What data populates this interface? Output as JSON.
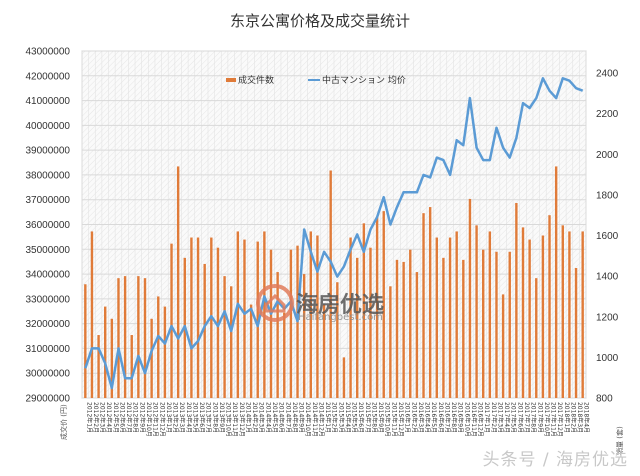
{
  "title": "东京公寓价格及成交量统计",
  "watermark": "头条号 / 海房优选",
  "logo": {
    "name": "海房优选",
    "url": "Haifangbest.com"
  },
  "colors": {
    "bar": "#e07b39",
    "line": "#5b9bd5",
    "grid": "#d9d9d9",
    "text": "#333333"
  },
  "chart_data": {
    "type": "bar+line",
    "title": "东京公寓价格及成交量统计",
    "legend": [
      "成交件数",
      "中古マンション 均价"
    ],
    "legend_position": "top",
    "y_left": {
      "label": "成交价 (円)",
      "min": 29000000,
      "max": 43000000,
      "step": 1000000,
      "ticks": [
        "29000000",
        "30000000",
        "31000000",
        "32000000",
        "33000000",
        "34000000",
        "35000000",
        "36000000",
        "37000000",
        "38000000",
        "39000000",
        "40000000",
        "41000000",
        "42000000",
        "43000000"
      ]
    },
    "y_right": {
      "label": "销量 (套)",
      "min": 800,
      "max": 2400,
      "step": 200,
      "ticks": [
        "800",
        "1000",
        "1200",
        "1400",
        "1600",
        "1800",
        "2000",
        "2200",
        "2400"
      ]
    },
    "categories": [
      "2012年1月",
      "2012年2月",
      "2012年3月",
      "2012年4月",
      "2012年5月",
      "2012年6月",
      "2012年7月",
      "2012年8月",
      "2012年9月",
      "2012年10月",
      "2012年11月",
      "2012年12月",
      "2013年1月",
      "2013年2月",
      "2013年3月",
      "2013年4月",
      "2013年5月",
      "2013年6月",
      "2013年7月",
      "2013年8月",
      "2013年9月",
      "2013年10月",
      "2013年11月",
      "2013年12月",
      "2014年1月",
      "2014年2月",
      "2014年3月",
      "2014年4月",
      "2014年5月",
      "2014年6月",
      "2014年7月",
      "2014年8月",
      "2014年9月",
      "2014年10月",
      "2014年11月",
      "2014年12月",
      "2015年1月",
      "2015年2月",
      "2015年3月",
      "2015年4月",
      "2015年5月",
      "2015年6月",
      "2015年7月",
      "2015年8月",
      "2015年9月",
      "2015年10月",
      "2015年11月",
      "2015年12月",
      "2016年1月",
      "2016年2月",
      "2016年3月",
      "2016年4月",
      "2016年5月",
      "2016年6月",
      "2016年7月",
      "2016年8月",
      "2016年9月",
      "2016年10月",
      "2016年11月",
      "2016年12月",
      "2017年1月",
      "2017年2月",
      "2017年3月",
      "2017年4月",
      "2017年5月",
      "2017年6月",
      "2017年7月",
      "2017年8月",
      "2017年9月",
      "2017年10月",
      "2017年11月",
      "2017年12月",
      "2018年1月",
      "2018年2月",
      "2018年3月",
      "2018年4月"
    ],
    "series": [
      {
        "name": "成交件数",
        "type": "bar",
        "axis": "right",
        "values": [
          1360,
          1620,
          1110,
          1250,
          1190,
          1390,
          1400,
          1110,
          1400,
          1390,
          1190,
          1300,
          1250,
          1560,
          1940,
          1490,
          1590,
          1590,
          1460,
          1590,
          1540,
          1400,
          1350,
          1620,
          1580,
          1260,
          1570,
          1620,
          1530,
          1420,
          1220,
          1530,
          1550,
          1410,
          1620,
          1600,
          1260,
          1920,
          1370,
          1000,
          1590,
          1490,
          1660,
          1540,
          1690,
          1720,
          1350,
          1480,
          1470,
          1530,
          1420,
          1710,
          1740,
          1590,
          1490,
          1590,
          1620,
          1480,
          1780,
          1650,
          1530,
          1620,
          1520,
          1310,
          1520,
          1760,
          1640,
          1580,
          1390,
          1600,
          1700,
          1940,
          1650,
          1620,
          1440,
          1620
        ]
      },
      {
        "name": "中古マンション 均价",
        "type": "line",
        "axis": "left",
        "values": [
          30200000,
          31000000,
          31000000,
          30400000,
          29400000,
          31000000,
          29800000,
          29800000,
          30700000,
          30000000,
          30900000,
          31500000,
          31200000,
          31900000,
          31400000,
          31900000,
          31000000,
          31300000,
          31900000,
          32300000,
          31900000,
          32500000,
          31700000,
          32800000,
          32400000,
          32600000,
          31900000,
          33100000,
          32400000,
          32900000,
          32600000,
          32900000,
          32100000,
          35800000,
          34900000,
          34100000,
          34900000,
          34500000,
          33900000,
          34300000,
          35000000,
          35600000,
          34900000,
          35800000,
          36300000,
          37100000,
          36000000,
          36700000,
          37300000,
          37300000,
          37300000,
          38000000,
          37900000,
          38700000,
          38600000,
          38000000,
          39400000,
          39200000,
          41100000,
          39100000,
          38600000,
          38600000,
          39900000,
          39100000,
          38700000,
          39500000,
          40900000,
          40700000,
          41100000,
          41900000,
          41400000,
          41100000,
          41900000,
          41800000,
          41500000,
          41400000
        ]
      }
    ]
  }
}
